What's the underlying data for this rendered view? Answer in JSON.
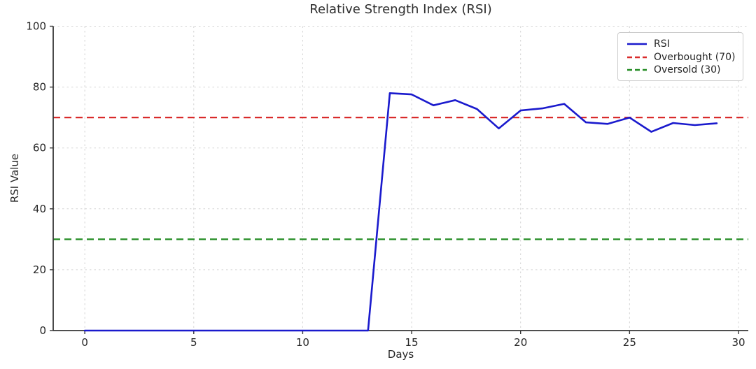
{
  "title": "Relative Strength Index (RSI)",
  "chart_data": {
    "type": "line",
    "title": "Relative Strength Index (RSI)",
    "xlabel": "Days",
    "ylabel": "RSI Value",
    "xlim": [
      -1.45,
      30.45
    ],
    "ylim": [
      0,
      100
    ],
    "xticks": [
      0,
      5,
      10,
      15,
      20,
      25,
      30
    ],
    "yticks": [
      0,
      20,
      40,
      60,
      80,
      100
    ],
    "grid": true,
    "legend_position": "upper right",
    "x": [
      0,
      1,
      2,
      3,
      4,
      5,
      6,
      7,
      8,
      9,
      10,
      11,
      12,
      13,
      14,
      15,
      16,
      17,
      18,
      19,
      20,
      21,
      22,
      23,
      24,
      25,
      26,
      27,
      28,
      29
    ],
    "series": [
      {
        "name": "RSI",
        "kind": "line",
        "color": "#1a1acd",
        "style": "solid",
        "values": [
          0,
          0,
          0,
          0,
          0,
          0,
          0,
          0,
          0,
          0,
          0,
          0,
          0,
          0,
          78.0,
          77.6,
          74.0,
          75.7,
          72.8,
          66.4,
          72.3,
          73.0,
          74.5,
          68.4,
          67.9,
          70.0,
          65.3,
          68.2,
          67.5,
          68.1
        ]
      },
      {
        "name": "Overbought (70)",
        "kind": "hline",
        "color": "#d92b2b",
        "style": "dashed",
        "value": 70
      },
      {
        "name": "Oversold (30)",
        "kind": "hline",
        "color": "#228b22",
        "style": "dashed",
        "value": 30
      }
    ]
  },
  "colors": {
    "rsi_line": "#1a1acd",
    "overbought_line": "#d92b2b",
    "oversold_line": "#228b22",
    "grid": "#d4d4d4",
    "spine": "#363636",
    "text": "#262626"
  }
}
